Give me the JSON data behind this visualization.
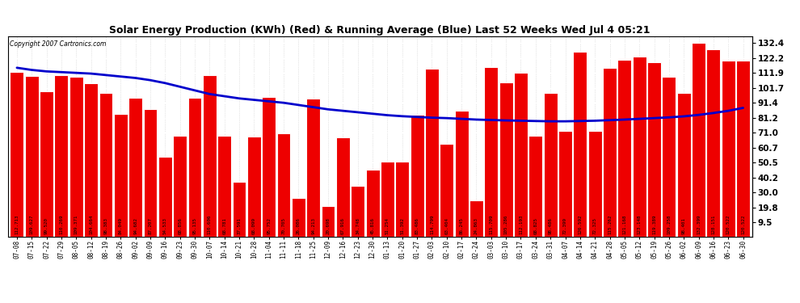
{
  "title": "Solar Energy Production (KWh) (Red) & Running Average (Blue) Last 52 Weeks Wed Jul 4 05:21",
  "copyright": "Copyright 2007 Cartronics.com",
  "bar_color": "#ee0000",
  "line_color": "#0000cc",
  "bg_color": "#ffffff",
  "yticks": [
    9.5,
    19.8,
    30.0,
    40.2,
    50.5,
    60.7,
    71.0,
    81.2,
    91.4,
    101.7,
    111.9,
    122.2,
    132.4
  ],
  "ylim": [
    0,
    137
  ],
  "categories": [
    "07-08",
    "07-15",
    "07-22",
    "07-29",
    "08-05",
    "08-12",
    "08-19",
    "08-26",
    "09-02",
    "09-09",
    "09-16",
    "09-23",
    "09-30",
    "10-07",
    "10-14",
    "10-21",
    "10-28",
    "11-04",
    "11-11",
    "11-18",
    "11-25",
    "12-09",
    "12-16",
    "12-23",
    "12-30",
    "01-13",
    "01-20",
    "01-27",
    "02-03",
    "02-10",
    "02-17",
    "02-24",
    "03-03",
    "03-10",
    "03-17",
    "03-24",
    "03-31",
    "04-07",
    "04-14",
    "04-21",
    "04-28",
    "05-05",
    "05-12",
    "05-19",
    "05-26",
    "06-02",
    "06-09",
    "06-16",
    "06-23",
    "06-30"
  ],
  "values": [
    112.713,
    109.627,
    99.52,
    110.269,
    109.371,
    104.664,
    98.383,
    84.049,
    94.682,
    87.207,
    54.533,
    68.856,
    95.135,
    110.606,
    68.781,
    37.591,
    68.099,
    95.752,
    70.705,
    26.086,
    94.213,
    20.698,
    67.916,
    34.748,
    45.816,
    51.254,
    51.392,
    83.486,
    114.799,
    63.404,
    86.245,
    24.863,
    115.709,
    105.286,
    112.193,
    68.825,
    98.486,
    72.399,
    126.592,
    72.325,
    115.262,
    121.168,
    123.148,
    119.389,
    109.258,
    98.401,
    132.399,
    128.151,
    120.522,
    120.522
  ],
  "running_avg": [
    115.5,
    114.0,
    113.0,
    112.5,
    112.0,
    111.5,
    110.5,
    109.5,
    108.5,
    107.0,
    105.0,
    102.5,
    100.0,
    97.5,
    96.0,
    94.5,
    93.5,
    92.5,
    91.5,
    90.0,
    88.5,
    87.0,
    86.0,
    85.0,
    84.0,
    83.0,
    82.3,
    81.8,
    81.3,
    81.0,
    80.5,
    80.0,
    79.7,
    79.4,
    79.2,
    79.0,
    78.8,
    78.8,
    79.0,
    79.2,
    79.6,
    80.0,
    80.5,
    81.0,
    81.5,
    82.2,
    83.2,
    84.5,
    86.0,
    88.0
  ]
}
